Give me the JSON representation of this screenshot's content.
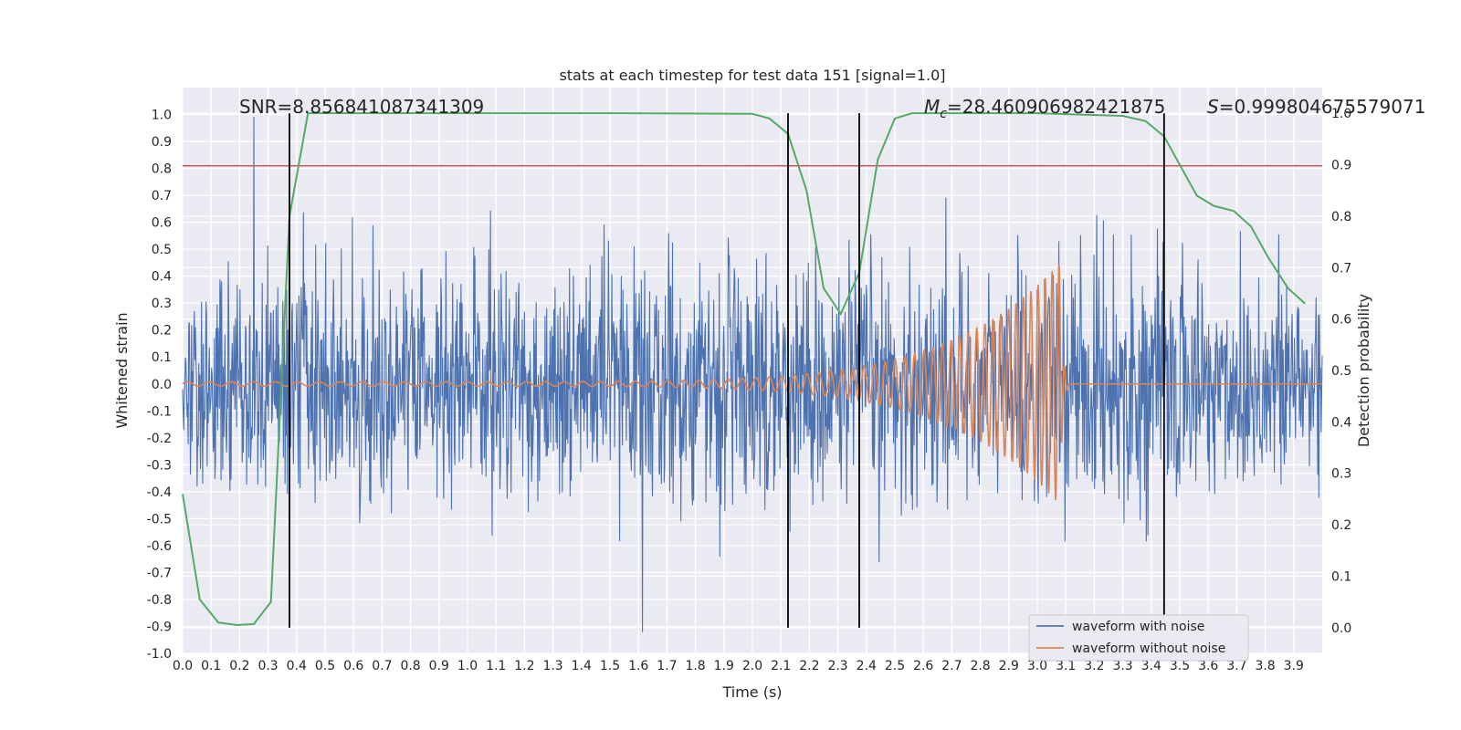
{
  "chart_data": {
    "type": "line",
    "title": "stats at each timestep for test data 151 [signal=1.0]",
    "xlabel": "Time (s)",
    "ylabel": "Whitened strain",
    "y2label": "Detection probability",
    "xlim": [
      0.0,
      4.0
    ],
    "ylim": [
      -1.0,
      1.1
    ],
    "y2lim": [
      -0.05,
      1.05
    ],
    "x_ticks": [
      "0.0",
      "0.1",
      "0.2",
      "0.3",
      "0.4",
      "0.5",
      "0.6",
      "0.7",
      "0.8",
      "0.9",
      "1.0",
      "1.1",
      "1.2",
      "1.3",
      "1.4",
      "1.5",
      "1.6",
      "1.7",
      "1.8",
      "1.9",
      "2.0",
      "2.1",
      "2.2",
      "2.3",
      "2.4",
      "2.5",
      "2.6",
      "2.7",
      "2.8",
      "2.9",
      "3.0",
      "3.1",
      "3.2",
      "3.3",
      "3.4",
      "3.5",
      "3.6",
      "3.7",
      "3.8",
      "3.9"
    ],
    "y_ticks": [
      "-1.0",
      "-0.9",
      "-0.8",
      "-0.7",
      "-0.6",
      "-0.5",
      "-0.4",
      "-0.3",
      "-0.2",
      "-0.1",
      "0.0",
      "0.1",
      "0.2",
      "0.3",
      "0.4",
      "0.5",
      "0.6",
      "0.7",
      "0.8",
      "0.9",
      "1.0"
    ],
    "y2_ticks": [
      "0.0",
      "0.1",
      "0.2",
      "0.3",
      "0.4",
      "0.5",
      "0.6",
      "0.7",
      "0.8",
      "0.9",
      "1.0"
    ],
    "annotations": {
      "snr": "SNR=8.856841087341309",
      "mc_symbol": "M",
      "mc_sub": "c",
      "mc_value": "=28.460906982421875",
      "s_symbol": "S",
      "s_value": "=0.999804675579071"
    },
    "threshold": {
      "axis": "y",
      "value": 0.81,
      "color": "#c44e52"
    },
    "vertical_lines": [
      0.375,
      2.125,
      2.375,
      3.445
    ],
    "series": [
      {
        "name": "waveform with noise",
        "color": "#4c72b0",
        "axis": "y",
        "noise": {
          "t_start": 0.0,
          "t_end": 4.0,
          "samples": 2048,
          "sigma": 0.22,
          "peak": 1.0,
          "peak_t": 0.25
        }
      },
      {
        "name": "waveform without noise",
        "color": "#dd8452",
        "axis": "y",
        "chirp": {
          "t_start": 0.0,
          "t_merge": 3.08,
          "t_end": 4.0,
          "f_start": 13,
          "f_merge": 42,
          "amp_start": 0.008,
          "amp_merge": 0.45,
          "ringdown_end": 3.11
        }
      },
      {
        "name": "",
        "color": "#55a868",
        "axis": "y2",
        "x": [
          0.0,
          0.06,
          0.125,
          0.19,
          0.25,
          0.31,
          0.375,
          0.44,
          0.5,
          1.0,
          1.5,
          2.0,
          2.06,
          2.125,
          2.19,
          2.25,
          2.31,
          2.375,
          2.44,
          2.5,
          2.56,
          3.0,
          3.3,
          3.38,
          3.445,
          3.5,
          3.56,
          3.62,
          3.69,
          3.75,
          3.81,
          3.88,
          3.94
        ],
        "y": [
          0.26,
          0.055,
          0.01,
          0.005,
          0.007,
          0.05,
          0.8,
          1.0,
          1.0,
          1.0,
          1.0,
          0.999,
          0.99,
          0.96,
          0.85,
          0.66,
          0.61,
          0.69,
          0.91,
          0.99,
          1.0,
          1.0,
          0.995,
          0.985,
          0.955,
          0.9,
          0.84,
          0.82,
          0.81,
          0.78,
          0.72,
          0.66,
          0.63
        ]
      }
    ],
    "legend": {
      "placement": "lower-right",
      "entries": [
        "waveform with noise",
        "waveform without noise"
      ]
    },
    "grid": true
  }
}
